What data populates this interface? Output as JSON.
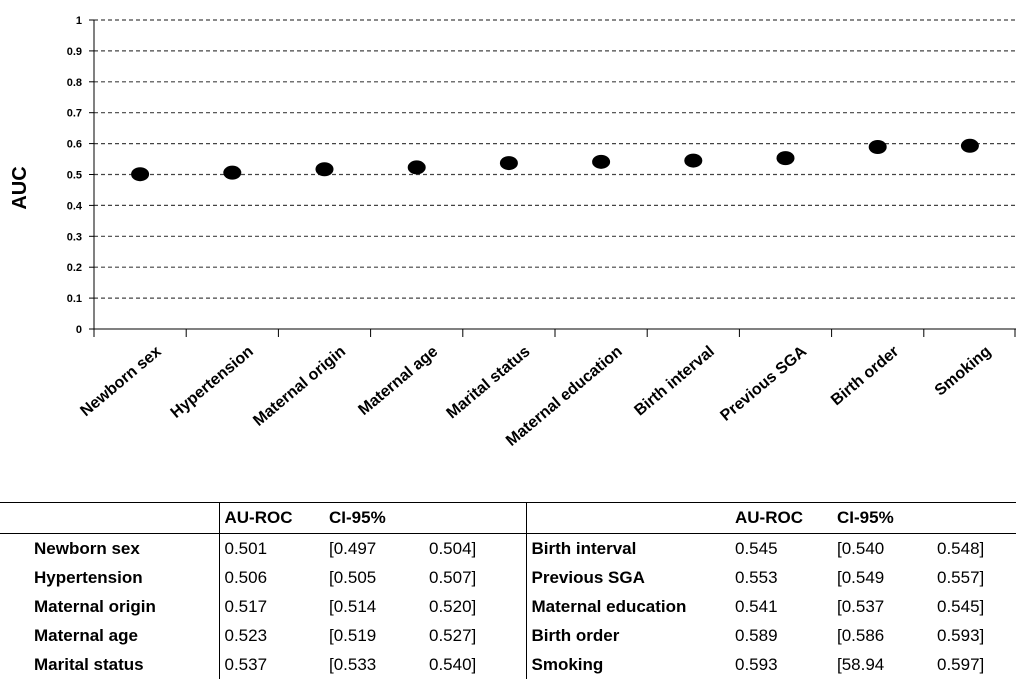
{
  "chart_data": {
    "type": "scatter",
    "ylabel": "AUC",
    "ylim": [
      0,
      1
    ],
    "yticks": [
      "0",
      "0.1",
      "0.2",
      "0.3",
      "0.4",
      "0.5",
      "0.6",
      "0.7",
      "0.8",
      "0.9",
      "1"
    ],
    "grid": "horizontal-dashed",
    "categories": [
      "Newborn sex",
      "Hypertension",
      "Maternal origin",
      "Maternal age",
      "Marital status",
      "Maternal education",
      "Birth interval",
      "Previous SGA",
      "Birth order",
      "Smoking"
    ],
    "values": [
      0.501,
      0.506,
      0.517,
      0.523,
      0.537,
      0.541,
      0.545,
      0.553,
      0.589,
      0.593
    ],
    "marker_color": "#000000"
  },
  "table": {
    "headers": [
      "AU-ROC",
      "CI-95%"
    ],
    "rows": [
      {
        "left": {
          "name": "Newborn sex",
          "auc": "0.501",
          "ci_low": "[0.497",
          "ci_high": "0.504]"
        },
        "right": {
          "name": "Birth interval",
          "auc": "0.545",
          "ci_low": "[0.540",
          "ci_high": "0.548]"
        }
      },
      {
        "left": {
          "name": "Hypertension",
          "auc": "0.506",
          "ci_low": "[0.505",
          "ci_high": "0.507]"
        },
        "right": {
          "name": "Previous SGA",
          "auc": "0.553",
          "ci_low": "[0.549",
          "ci_high": "0.557]"
        }
      },
      {
        "left": {
          "name": "Maternal origin",
          "auc": "0.517",
          "ci_low": "[0.514",
          "ci_high": "0.520]"
        },
        "right": {
          "name": "Maternal education",
          "auc": "0.541",
          "ci_low": "[0.537",
          "ci_high": "0.545]"
        }
      },
      {
        "left": {
          "name": "Maternal age",
          "auc": "0.523",
          "ci_low": "[0.519",
          "ci_high": "0.527]"
        },
        "right": {
          "name": "Birth order",
          "auc": "0.589",
          "ci_low": "[0.586",
          "ci_high": "0.593]"
        }
      },
      {
        "left": {
          "name": "Marital status",
          "auc": "0.537",
          "ci_low": "[0.533",
          "ci_high": "0.540]"
        },
        "right": {
          "name": "Smoking",
          "auc": "0.593",
          "ci_low": "[58.94",
          "ci_high": "0.597]"
        }
      }
    ]
  }
}
